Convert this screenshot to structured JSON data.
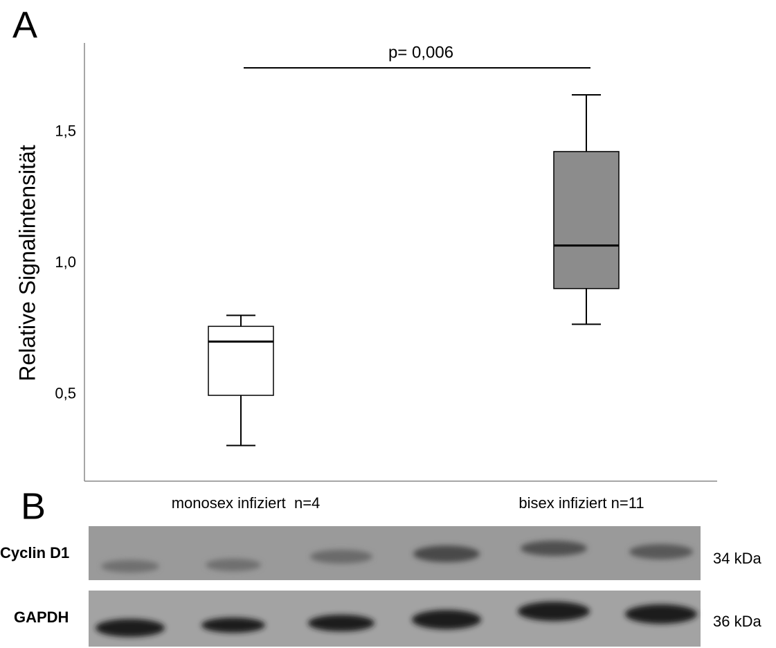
{
  "panels": {
    "a": "A",
    "b": "B"
  },
  "chart_data": {
    "type": "box",
    "ylabel": "Relative Signalintensität",
    "annotation": "p= 0,006",
    "categories": [
      "monosex infiziert  n=4",
      "bisex infiziert n=11"
    ],
    "boxes": [
      {
        "min": 0.306,
        "q1": 0.497,
        "median": 0.702,
        "q3": 0.76,
        "max": 0.802,
        "color": "#ffffff"
      },
      {
        "min": 0.768,
        "q1": 0.904,
        "median": 1.068,
        "q3": 1.426,
        "max": 1.642,
        "color": "#8c8c8c"
      }
    ],
    "ylim": [
      0.17,
      1.84
    ],
    "yticks": [
      {
        "value": 0.5,
        "label": "0,5"
      },
      {
        "value": 1.0,
        "label": "1,0"
      },
      {
        "value": 1.5,
        "label": "1,5"
      }
    ],
    "grid": false
  },
  "blot": {
    "rows": [
      {
        "label": "Cyclin D1",
        "size": "34 kDa"
      },
      {
        "label": "GAPDH",
        "size": "36 kDa"
      }
    ]
  }
}
